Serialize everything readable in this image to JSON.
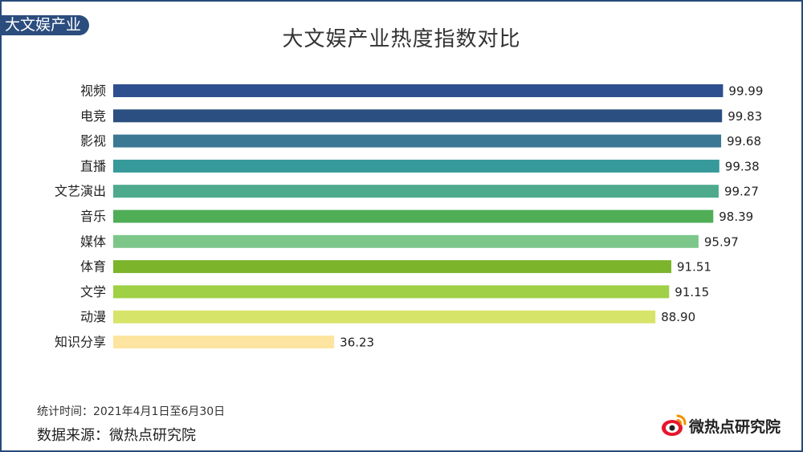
{
  "corner_tag": "大文娱产业",
  "footer": {
    "stat_period": "统计时间：2021年4月1日至6月30日",
    "source": "数据来源：微热点研究院",
    "logo_text": "微热点研究院"
  },
  "chart_data": {
    "type": "bar",
    "orientation": "horizontal",
    "title": "大文娱产业热度指数对比",
    "categories": [
      "视频",
      "电竞",
      "影视",
      "直播",
      "文艺演出",
      "音乐",
      "媒体",
      "体育",
      "文学",
      "动漫",
      "知识分享"
    ],
    "values": [
      99.99,
      99.83,
      99.68,
      99.38,
      99.27,
      98.39,
      95.97,
      91.51,
      91.15,
      88.9,
      36.23
    ],
    "value_labels": [
      "99.99",
      "99.83",
      "99.68",
      "99.38",
      "99.27",
      "98.39",
      "95.97",
      "91.51",
      "91.15",
      "88.90",
      "36.23"
    ],
    "colors": [
      "#2e4f8f",
      "#2a4f80",
      "#3a7894",
      "#36999a",
      "#4daa8c",
      "#4fad56",
      "#7cc68a",
      "#7cb42b",
      "#9fd045",
      "#d7e46a",
      "#fde4a0"
    ],
    "xlim": [
      0,
      100
    ],
    "grid": false,
    "legend": "none"
  }
}
